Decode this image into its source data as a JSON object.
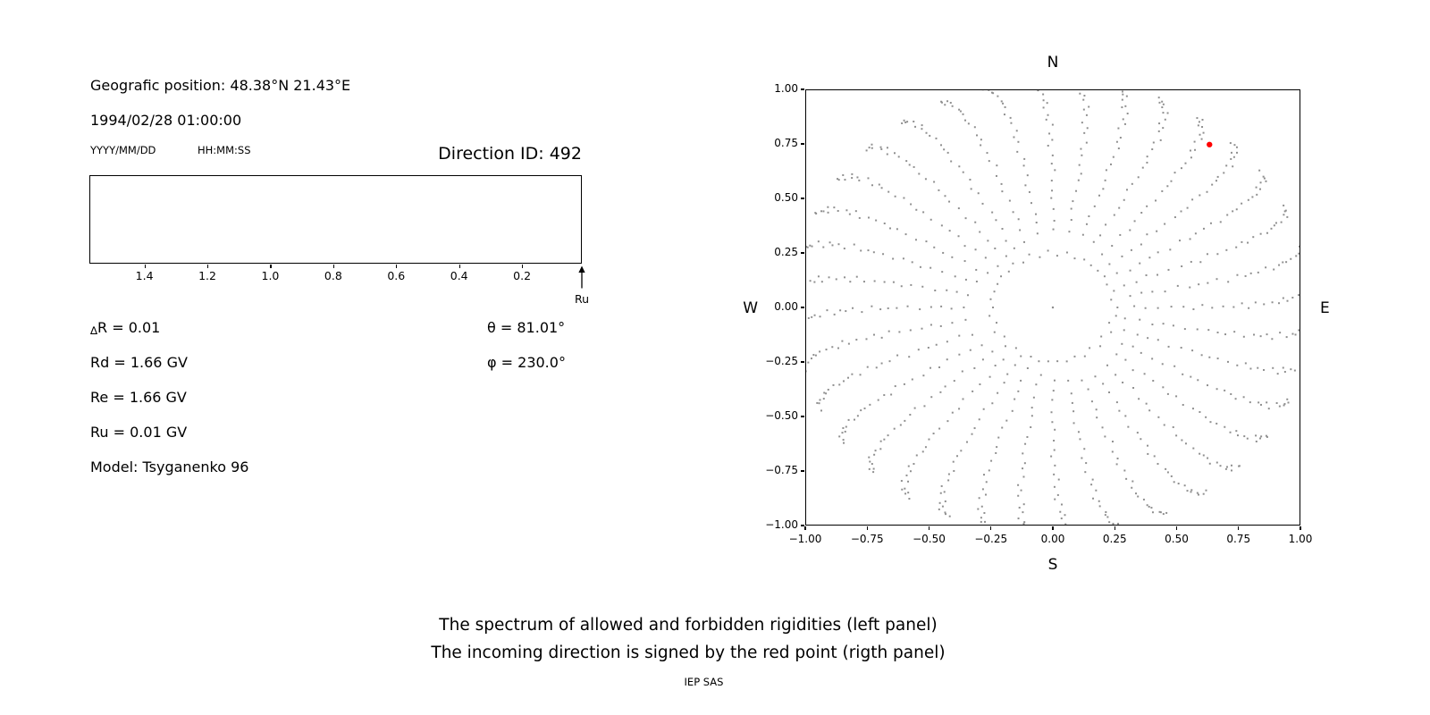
{
  "left_panel": {
    "geo_position": "Geografic position: 48.38°N 21.43°E",
    "datetime": "1994/02/28 01:00:00",
    "date_format_hint": "YYYY/MM/DD",
    "time_format_hint": "HH:MM:SS",
    "direction_id_label": "Direction ID: 492",
    "params": {
      "delta_symbol": "∆",
      "delta_rest": "R = 0.01",
      "theta": "θ = 81.01°",
      "phi": "φ = 230.0°",
      "rd": "Rd = 1.66 GV",
      "re": "Re = 1.66 GV",
      "ru": "Ru = 0.01 GV",
      "model": "Model: Tsyganenko 96"
    }
  },
  "captions": {
    "line1": "The spectrum of allowed and forbidden rigidities (left panel)",
    "line2": "The incoming direction is signed by the red point (rigth panel)",
    "credit": "IEP SAS"
  },
  "chart_data": [
    {
      "id": "rigidity-spectrum",
      "type": "line",
      "x_axis": {
        "left_edge_value": 1.575,
        "right_edge_value": 0.01,
        "ticks": [
          {
            "value": 1.4,
            "label": "1.4"
          },
          {
            "value": 1.2,
            "label": "1.2"
          },
          {
            "value": 1.0,
            "label": "1.0"
          },
          {
            "value": 0.8,
            "label": "0.8"
          },
          {
            "value": 0.6,
            "label": "0.6"
          },
          {
            "value": 0.4,
            "label": "0.4"
          },
          {
            "value": 0.2,
            "label": "0.2"
          }
        ],
        "arrow": {
          "value": 0.01,
          "label": "Ru"
        }
      },
      "series": []
    },
    {
      "id": "incoming-direction-map",
      "type": "scatter",
      "xlim": [
        -1,
        1
      ],
      "ylim": [
        -1,
        1
      ],
      "x_ticks": [
        {
          "value": -1.0,
          "label": "−1.00"
        },
        {
          "value": -0.75,
          "label": "−0.75"
        },
        {
          "value": -0.5,
          "label": "−0.50"
        },
        {
          "value": -0.25,
          "label": "−0.25"
        },
        {
          "value": 0.0,
          "label": "0.00"
        },
        {
          "value": 0.25,
          "label": "0.25"
        },
        {
          "value": 0.5,
          "label": "0.50"
        },
        {
          "value": 0.75,
          "label": "0.75"
        },
        {
          "value": 1.0,
          "label": "1.00"
        }
      ],
      "y_ticks": [
        {
          "value": 1.0,
          "label": "1.00"
        },
        {
          "value": 0.75,
          "label": "0.75"
        },
        {
          "value": 0.5,
          "label": "0.50"
        },
        {
          "value": 0.25,
          "label": "0.25"
        },
        {
          "value": 0.0,
          "label": "0.00"
        },
        {
          "value": -0.25,
          "label": "−0.25"
        },
        {
          "value": -0.5,
          "label": "−0.50"
        },
        {
          "value": -0.75,
          "label": "−0.75"
        },
        {
          "value": -1.0,
          "label": "−1.00"
        }
      ],
      "compass": {
        "top": "N",
        "bottom": "S",
        "left": "W",
        "right": "E"
      },
      "gray_dots": {
        "color": "#8f8f8f",
        "center_dot": [
          0,
          0
        ],
        "inner_ring": {
          "radius": 0.25,
          "points": 42
        },
        "spokes": {
          "count": 36,
          "angle_step_deg": 10,
          "start_angle_deg": 0,
          "r_start": 0.33,
          "r_end": 1.05,
          "points_per_spoke": 26,
          "tip_curl_deg": 6
        }
      },
      "red_point": {
        "x": 0.635,
        "y": 0.75,
        "color": "#ff0000"
      }
    }
  ]
}
